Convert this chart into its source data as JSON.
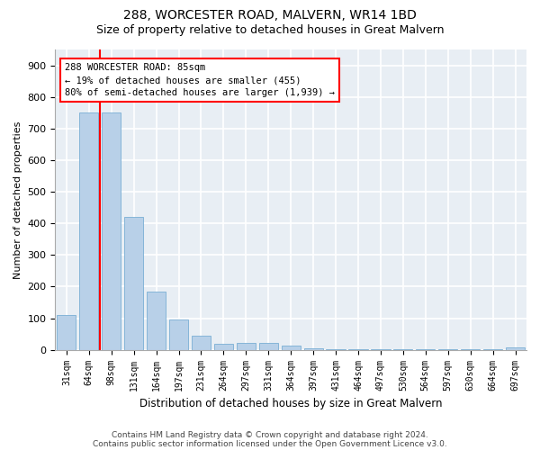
{
  "title": "288, WORCESTER ROAD, MALVERN, WR14 1BD",
  "subtitle": "Size of property relative to detached houses in Great Malvern",
  "xlabel": "Distribution of detached houses by size in Great Malvern",
  "ylabel": "Number of detached properties",
  "categories": [
    "31sqm",
    "64sqm",
    "98sqm",
    "131sqm",
    "164sqm",
    "197sqm",
    "231sqm",
    "264sqm",
    "297sqm",
    "331sqm",
    "364sqm",
    "397sqm",
    "431sqm",
    "464sqm",
    "497sqm",
    "530sqm",
    "564sqm",
    "597sqm",
    "630sqm",
    "664sqm",
    "697sqm"
  ],
  "values": [
    110,
    750,
    750,
    420,
    185,
    95,
    45,
    20,
    22,
    22,
    13,
    5,
    2,
    2,
    1,
    1,
    1,
    1,
    1,
    1,
    8
  ],
  "bar_color": "#b8d0e8",
  "bar_edge_color": "#7aafd4",
  "vline_x": 1.5,
  "vline_color": "red",
  "annotation_box_text": "288 WORCESTER ROAD: 85sqm\n← 19% of detached houses are smaller (455)\n80% of semi-detached houses are larger (1,939) →",
  "ylim": [
    0,
    950
  ],
  "yticks": [
    0,
    100,
    200,
    300,
    400,
    500,
    600,
    700,
    800,
    900
  ],
  "footnote1": "Contains HM Land Registry data © Crown copyright and database right 2024.",
  "footnote2": "Contains public sector information licensed under the Open Government Licence v3.0.",
  "background_color": "#e8eef4",
  "grid_color": "#ffffff",
  "title_fontsize": 10,
  "subtitle_fontsize": 9,
  "xlabel_fontsize": 8.5,
  "ylabel_fontsize": 8,
  "tick_fontsize": 7,
  "annotation_fontsize": 7.5,
  "footnote_fontsize": 6.5
}
